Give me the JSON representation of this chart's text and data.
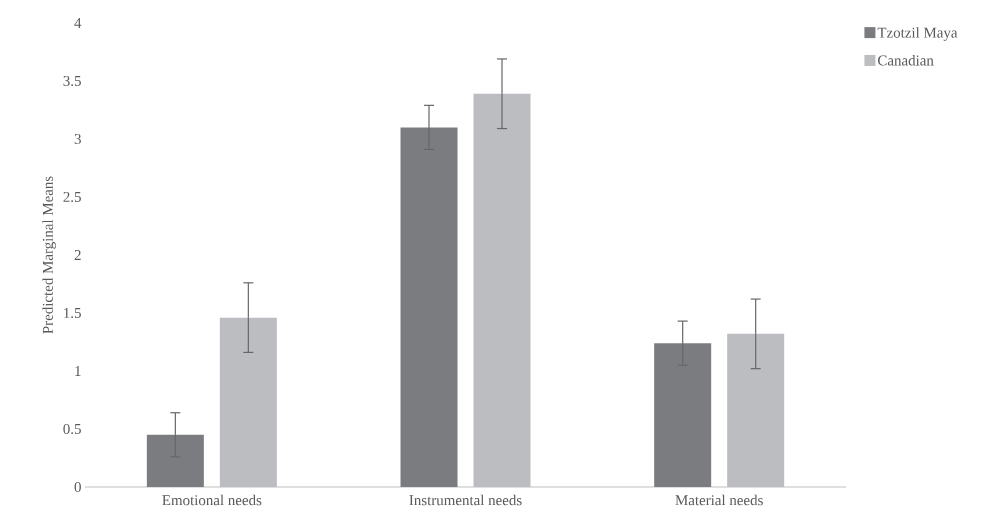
{
  "chart_data": {
    "type": "bar",
    "ylabel": "Predicted Marginal Means",
    "categories": [
      "Emotional needs",
      "Instrumental needs",
      "Material needs"
    ],
    "series": [
      {
        "name": "Tzotzil Maya",
        "color": "#7b7c80",
        "values": [
          0.45,
          3.1,
          1.24
        ],
        "errors": [
          0.19,
          0.19,
          0.19
        ]
      },
      {
        "name": "Canadian",
        "color": "#bcbdc1",
        "values": [
          1.46,
          3.39,
          1.32
        ],
        "errors": [
          0.3,
          0.3,
          0.3
        ]
      }
    ],
    "ylim": [
      0,
      4
    ],
    "yticks": [
      0,
      0.5,
      1,
      1.5,
      2,
      2.5,
      3,
      3.5,
      4
    ],
    "grid": false,
    "legend": "top right"
  }
}
